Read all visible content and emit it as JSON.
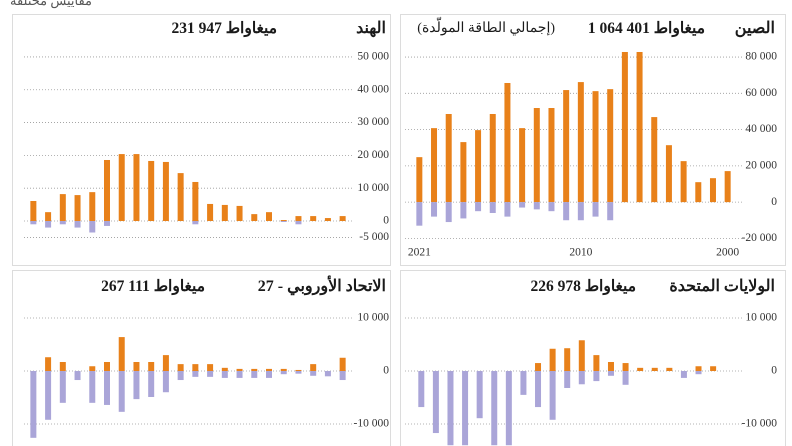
{
  "note": "مقاييس مختلفة",
  "chart_data": [
    {
      "type": "bar",
      "title": "الصين",
      "total": "1 064 401 ميغاواط",
      "subtitle": "(إجمالي الطاقة المولّدة)",
      "categories": [
        "2021",
        null,
        null,
        null,
        null,
        null,
        null,
        null,
        null,
        null,
        null,
        "2010",
        null,
        null,
        null,
        null,
        null,
        null,
        null,
        null,
        null,
        "2000"
      ],
      "series": [
        {
          "color": "#e8811a",
          "values": [
            24800,
            40800,
            48600,
            33100,
            39700,
            48600,
            65700,
            40800,
            51900,
            51900,
            61800,
            66200,
            61200,
            62300,
            82800,
            82800,
            46900,
            31400,
            22600,
            11000,
            13200,
            17100
          ]
        },
        {
          "color": "#aaa5d8",
          "values": [
            -13000,
            -8000,
            -11000,
            -9000,
            -5000,
            -6000,
            -8000,
            -3000,
            -4000,
            -5000,
            -10000,
            -10000,
            -8000,
            -10000,
            0,
            0,
            0,
            0,
            0,
            0,
            0,
            0
          ]
        }
      ],
      "ylim": [
        -22000,
        85000
      ],
      "yticks": [
        {
          "value": -20000,
          "label": "-20 000"
        },
        0,
        {
          "value": 20000,
          "label": "20 000"
        },
        {
          "value": 40000,
          "label": "40 000"
        },
        {
          "value": 60000,
          "label": "60 000"
        },
        {
          "value": 80000,
          "label": "80 000"
        }
      ],
      "grid": true
    },
    {
      "type": "bar",
      "title": "الهند",
      "total": "231 947 ميغاواط",
      "series": [
        {
          "color": "#e8811a",
          "values": [
            6100,
            2700,
            8200,
            7900,
            8800,
            18600,
            20400,
            20400,
            18300,
            18000,
            14600,
            11900,
            5200,
            4900,
            4600,
            2100,
            2700,
            300,
            1500,
            1500,
            900,
            1500
          ]
        },
        {
          "color": "#aaa5d8",
          "values": [
            -1000,
            -2000,
            -1000,
            -2000,
            -3500,
            -1500,
            0,
            0,
            0,
            0,
            0,
            -1000,
            0,
            0,
            0,
            0,
            0,
            -300,
            -1000,
            0,
            0,
            0
          ]
        }
      ],
      "ylim": [
        -6000,
        52000
      ],
      "yticks": [
        {
          "value": -5000,
          "label": "-5 000"
        },
        0,
        {
          "value": 10000,
          "label": "10 000"
        },
        {
          "value": 20000,
          "label": "20 000"
        },
        {
          "value": 30000,
          "label": "30 000"
        },
        {
          "value": 40000,
          "label": "40 000"
        },
        {
          "value": 50000,
          "label": "50 000"
        }
      ],
      "grid": true
    },
    {
      "type": "bar",
      "title": "الولايات المتحدة",
      "total": "226 978 ميغاواط",
      "series": [
        {
          "color": "#e8811a",
          "values": [
            0,
            0,
            0,
            0,
            0,
            0,
            0,
            0,
            1500,
            4200,
            4300,
            5800,
            3000,
            1700,
            1500,
            600,
            600,
            600,
            0,
            900,
            900,
            0
          ]
        },
        {
          "color": "#aaa5d8",
          "values": [
            -6800,
            -11700,
            -14000,
            -14000,
            -8900,
            -14000,
            -14000,
            -4500,
            -6800,
            -9200,
            -3200,
            -2500,
            -1900,
            -900,
            -2600,
            0,
            0,
            0,
            -1300,
            -600,
            0,
            0
          ]
        }
      ],
      "ylim": [
        -14200,
        12000
      ],
      "yticks": [
        {
          "value": -10000,
          "label": "-10 000"
        },
        0,
        {
          "value": 10000,
          "label": "10 000"
        }
      ],
      "grid": true
    },
    {
      "type": "bar",
      "title": "الاتحاد الأوروبي - 27",
      "total": "267 111 ميغاواط",
      "series": [
        {
          "color": "#e8811a",
          "values": [
            0,
            2600,
            1700,
            0,
            900,
            1700,
            6400,
            1700,
            1700,
            3000,
            1300,
            1300,
            1300,
            600,
            400,
            400,
            400,
            400,
            200,
            1300,
            0,
            2500
          ]
        },
        {
          "color": "#aaa5d8",
          "values": [
            -12600,
            -9200,
            -6000,
            -1700,
            -6000,
            -6400,
            -7700,
            -5300,
            -4900,
            -4000,
            -1700,
            -1100,
            -1100,
            -1300,
            -1300,
            -1300,
            -1300,
            -600,
            -500,
            -900,
            -1000,
            -1700
          ]
        }
      ],
      "ylim": [
        -14200,
        12000
      ],
      "yticks": [
        {
          "value": -10000,
          "label": "-10 000"
        },
        0,
        {
          "value": 10000,
          "label": "10 000"
        }
      ],
      "grid": true
    }
  ]
}
